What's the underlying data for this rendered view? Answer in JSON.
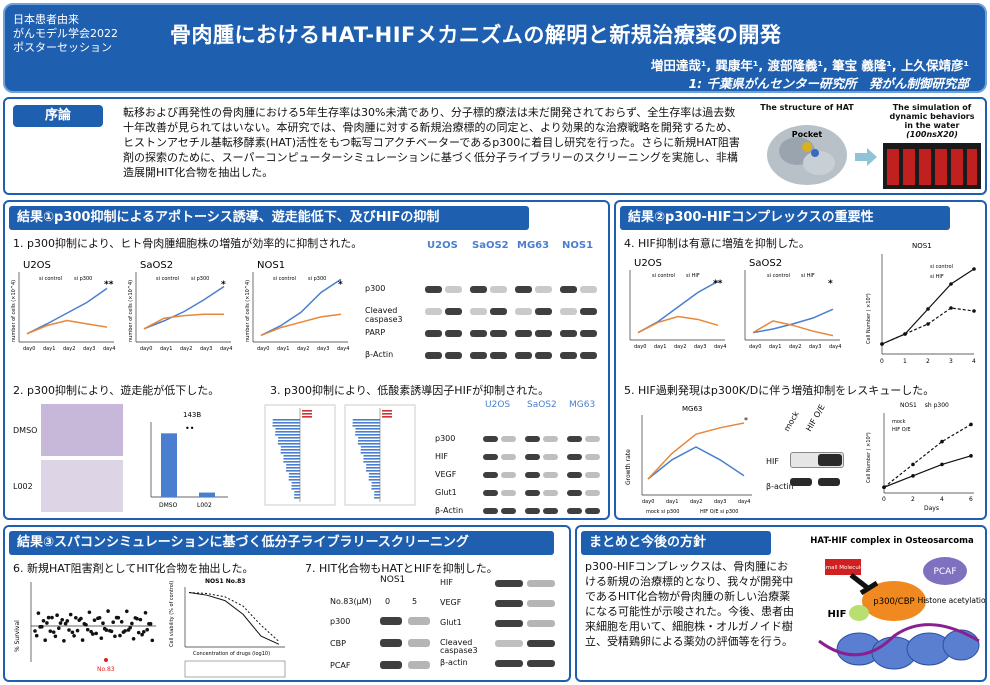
{
  "header": {
    "org_line1": "日本患者由来",
    "org_line2": "がんモデル学会2022",
    "org_line3": "ポスターセッション",
    "title": "骨肉腫におけるHAT-HIFメカニズムの解明と新規治療薬の開発",
    "authors": "増田達哉¹, 巽康年¹, 渡部隆義¹, 筆宝 義隆¹, 上久保靖彦¹",
    "affiliation": "1: 千葉県がんセンター研究所　発がん制御研究部"
  },
  "intro": {
    "heading": "序論",
    "text": "転移および再発性の骨肉腫における5年生存率は30%未満であり、分子標的療法は未だ開発されておらず、全生存率は過去数十年改善が見られてはいない。本研究では、骨肉腫に対する新規治療標的の同定と、より効果的な治療戦略を開発するため、ヒストンアセチル基転移酵素(HAT)活性をもつ転写コアクチベーターであるp300に着目し研究を行った。さらに新規HAT阻害剤の探索のために、スーパーコンピューターシミュレーションに基づく低分子ライブラリーのスクリーニングを実施し、非構造展開HIT化合物を抽出した。",
    "fig_left_caption": "The structure of HAT",
    "fig_left_label": "Pocket",
    "fig_right_caption1": "The simulation of",
    "fig_right_caption2": "dynamic behaviors",
    "fig_right_caption3": "in the water",
    "fig_right_caption4": "(100nsX20)"
  },
  "result1": {
    "heading": "結果①p300抑制によるアポトーシス誘導、遊走能低下、及びHIFの抑制",
    "sub1": "1. p300抑制により、ヒト骨肉腫細胞株の増殖が効率的に抑制された。",
    "sub2": "2. p300抑制により、遊走能が低下した。",
    "sub3": "3. p300抑制により、低酸素誘導因子HIFが抑制された。",
    "graph_titles": [
      "U2OS",
      "SaOS2",
      "NOS1"
    ],
    "legend_ctrl": "si control",
    "legend_p300": "si p300",
    "ylabel": "number of cells (×10^4)",
    "days": [
      "day0",
      "day1",
      "day2",
      "day3",
      "day4"
    ],
    "wb_cells": [
      "U2OS",
      "SaOS2",
      "MG63",
      "NOS1"
    ],
    "wb_rows": [
      "p300",
      "Cleaved caspase3",
      "PARP",
      "β-Actin"
    ],
    "migration_labels": [
      "DMSO",
      "L002"
    ],
    "migration_chart_title": "143B",
    "migration_bar_labels": [
      "DMSO",
      "L002"
    ],
    "wb2_cells": [
      "U2OS",
      "SaOS2",
      "MG63"
    ],
    "wb2_rows": [
      "p300",
      "HIF",
      "VEGF",
      "Glut1",
      "β-Actin"
    ]
  },
  "result2": {
    "heading": "結果②p300-HIFコンプレックスの重要性",
    "sub4": "4. HIF抑制は有意に増殖を抑制した。",
    "sub5": "5. HIF過剰発現はp300K/Dに伴う増殖抑制をレスキューした。",
    "g4_titles": [
      "U2OS",
      "SaOS2"
    ],
    "legend_sihif": "si HIF",
    "nos1_title": "NOS1",
    "nos1_ylabel": "Cell Number ( ×10⁴)",
    "nos1_days": [
      "0",
      "1",
      "2",
      "3",
      "4"
    ],
    "mg63_title": "MG63",
    "mg63_ylabel": "Growth rate",
    "legend_mock": "mock si p300",
    "legend_hifoe": "HIF O/E si p300",
    "wb3_labels": [
      "mock",
      "HIF O/E"
    ],
    "wb3_rows": [
      "HIF",
      "β-actin"
    ],
    "nos1b_title": "NOS1　 sh p300",
    "nos1b_legend_mock": "mock",
    "nos1b_legend_hif": "HIF O/E",
    "nos1b_xlabel": "Days",
    "nos1b_days": [
      "0",
      "2",
      "4",
      "6"
    ]
  },
  "result3": {
    "heading": "結果③スパコンシミュレーションに基づく低分子ライブラリースクリーニング",
    "sub6": "6. 新規HAT阻害剤としてHIT化合物を抽出した。",
    "sub7": "7. HIT化合物もHATとHIFを抑制した。",
    "scatter_ylabel": "% Survival",
    "hit_label": "No.83",
    "dose_title": "NOS1  No.83",
    "dose_ylabel": "Cell viability (% of control)",
    "dose_xlabel": "Concentration of drugs (log10)",
    "wb4_title": "NOS1",
    "wb4_dose_label": "No.83(μM)",
    "wb4_doses": [
      "0",
      "5"
    ],
    "wb4_rows": [
      "p300",
      "CBP",
      "PCAF"
    ],
    "wb5_rows": [
      "HIF",
      "VEGF",
      "Glut1",
      "Cleaved caspase3",
      "β-actin"
    ]
  },
  "summary": {
    "heading": "まとめと今後の方針",
    "text": "p300-HIFコンプレックスは、骨肉腫における新規の治療標的となり、我々が開発中であるHIT化合物が骨肉腫の新しい治療薬になる可能性が示唆された。今後、患者由来細胞を用いて、細胞株・オルガノイド樹立、受精鶏卵による薬効の評価等を行う。",
    "diagram_title": "HAT-HIF complex in Osteosarcoma",
    "node_pcaf": "PCAF",
    "node_p300": "p300/CBP",
    "node_hif": "HIF",
    "node_drug": "Small Molecule",
    "node_acetyl": "Histone acetylation"
  },
  "colors": {
    "brand": "#1f5fb0",
    "ctrl_line": "#4a7fd0",
    "kd_line": "#e8873a"
  }
}
